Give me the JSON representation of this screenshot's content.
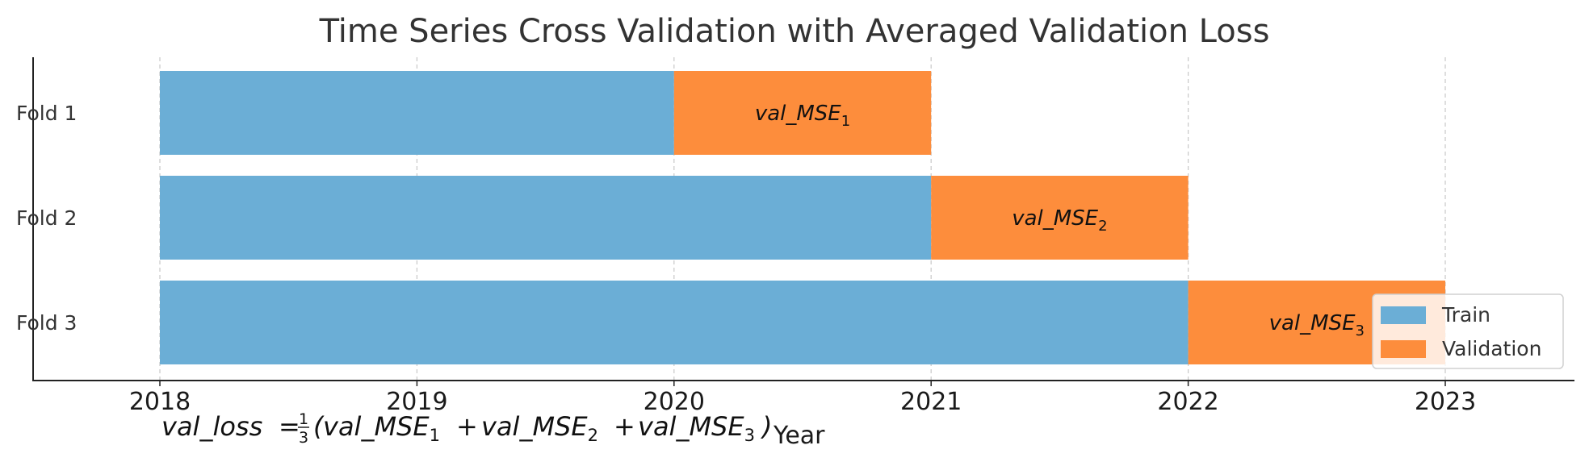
{
  "chart_data": {
    "type": "bar",
    "orientation": "horizontal-gantt",
    "title": "Time Series Cross Validation with Averaged Validation Loss",
    "xlabel": "Year",
    "ylabel": "",
    "xlim": [
      2017.5,
      2023.5
    ],
    "xticks": [
      "2018",
      "2019",
      "2020",
      "2021",
      "2022",
      "2023"
    ],
    "grid": "x-dashed",
    "categories": [
      "Fold 1",
      "Fold 2",
      "Fold 3"
    ],
    "series": [
      {
        "name": "Train",
        "color": "#6baed6",
        "segments": [
          [
            2018,
            2020
          ],
          [
            2018,
            2021
          ],
          [
            2018,
            2022
          ]
        ]
      },
      {
        "name": "Validation",
        "color": "#fd8d3c",
        "segments": [
          [
            2020,
            2021
          ],
          [
            2021,
            2022
          ],
          [
            2022,
            2023
          ]
        ]
      }
    ],
    "bar_labels": [
      {
        "base": "val_MSE",
        "sub": "1"
      },
      {
        "base": "val_MSE",
        "sub": "2"
      },
      {
        "base": "val_MSE",
        "sub": "3"
      }
    ],
    "legend": {
      "placement": "lower-right",
      "entries": [
        "Train",
        "Validation"
      ]
    },
    "formula": {
      "lhs": "val_loss",
      "eq": "=",
      "num": "1",
      "den": "3",
      "terms": [
        {
          "base": "val_MSE",
          "sub": "1"
        },
        {
          "base": "val_MSE",
          "sub": "2"
        },
        {
          "base": "val_MSE",
          "sub": "3"
        }
      ],
      "plus": "+",
      "open": "(",
      "close": ")"
    }
  }
}
